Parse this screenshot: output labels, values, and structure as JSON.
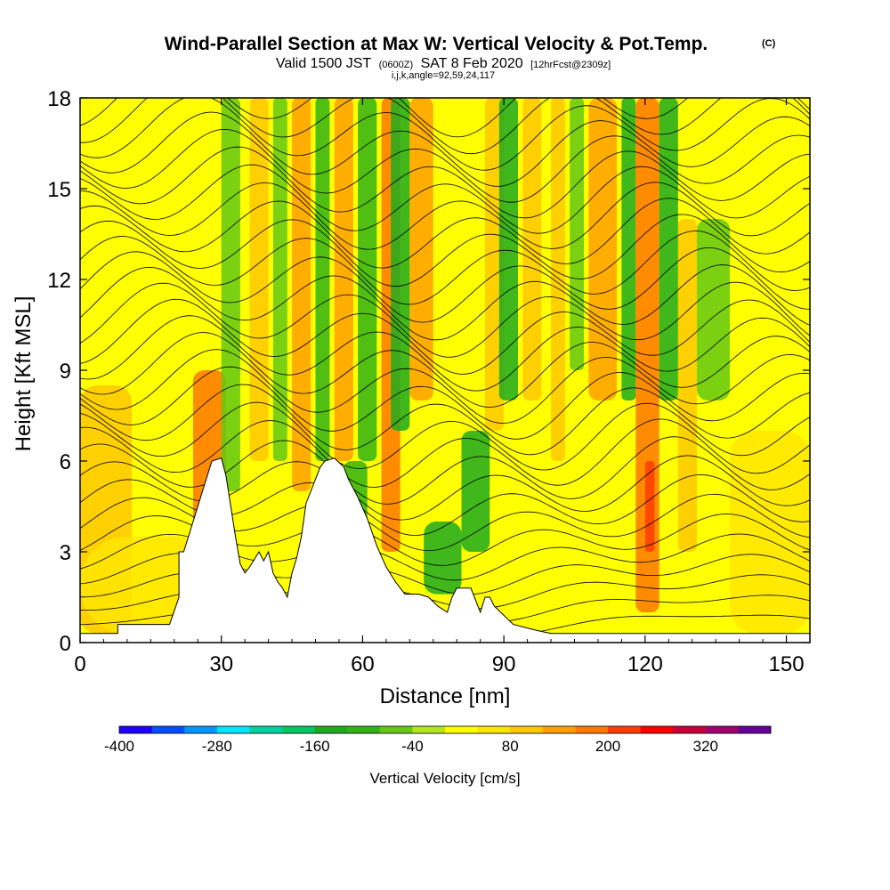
{
  "chart_data": {
    "type": "heatmap",
    "title": "Wind-Parallel Section at Max W: Vertical Velocity & Pot.Temp.",
    "title_unit": "(C)",
    "subtitle_pre": "Valid 1500 JST",
    "subtitle_utc": "(0600Z)",
    "subtitle_date": "SAT 8 Feb 2020",
    "subtitle_fcst": "[12hrFcst@2309z]",
    "grid_info": "i,j,k,angle=92,59,24,117",
    "xlabel": "Distance [nm]",
    "ylabel": "Height [Kft MSL]",
    "xlim": [
      0,
      155
    ],
    "ylim": [
      0,
      18
    ],
    "x_ticks": [
      0,
      30,
      60,
      90,
      120,
      150
    ],
    "y_ticks": [
      0,
      3,
      6,
      9,
      12,
      15,
      18
    ],
    "colorbar": {
      "title": "Vertical Velocity [cm/s]",
      "levels": [
        -400,
        -360,
        -320,
        -280,
        -240,
        -200,
        -160,
        -120,
        -80,
        -40,
        0,
        40,
        80,
        120,
        160,
        200,
        240,
        280,
        320,
        360
      ],
      "tick_labels": [
        "-400",
        "-280",
        "-160",
        "-40",
        "80",
        "200",
        "320"
      ],
      "colors": [
        "#1e00ff",
        "#0050ff",
        "#0096ff",
        "#00e6ff",
        "#00d2a0",
        "#00c864",
        "#1eaa1e",
        "#32b414",
        "#64c814",
        "#b4e61e",
        "#ffff00",
        "#ffe600",
        "#ffc800",
        "#ffa000",
        "#ff7800",
        "#ff3c00",
        "#ff0000",
        "#c8003c",
        "#a0006e",
        "#640096"
      ]
    },
    "terrain_kft": [
      [
        0,
        0.3
      ],
      [
        8,
        0.3
      ],
      [
        8,
        0.6
      ],
      [
        19,
        0.6
      ],
      [
        21,
        1.5
      ],
      [
        21,
        3.0
      ],
      [
        22,
        3.0
      ],
      [
        24,
        4.0
      ],
      [
        26,
        5.0
      ],
      [
        28,
        6.0
      ],
      [
        30,
        6.1
      ],
      [
        31,
        5.5
      ],
      [
        32,
        4.5
      ],
      [
        33,
        3.5
      ],
      [
        34,
        2.6
      ],
      [
        35,
        2.3
      ],
      [
        36,
        2.5
      ],
      [
        38,
        3.0
      ],
      [
        39,
        2.7
      ],
      [
        40,
        3.0
      ],
      [
        41,
        2.3
      ],
      [
        42,
        2.0
      ],
      [
        43,
        1.8
      ],
      [
        44,
        1.5
      ],
      [
        45,
        2.3
      ],
      [
        46,
        2.8
      ],
      [
        47,
        3.5
      ],
      [
        48,
        4.6
      ],
      [
        49,
        5.0
      ],
      [
        50,
        5.4
      ],
      [
        51,
        5.8
      ],
      [
        52,
        6.0
      ],
      [
        54,
        6.1
      ],
      [
        56,
        5.8
      ],
      [
        57,
        5.4
      ],
      [
        59,
        4.8
      ],
      [
        61,
        4.1
      ],
      [
        63,
        3.2
      ],
      [
        65,
        2.5
      ],
      [
        67,
        2.0
      ],
      [
        69,
        1.6
      ],
      [
        72,
        1.6
      ],
      [
        74,
        1.5
      ],
      [
        76,
        1.2
      ],
      [
        78,
        1.0
      ],
      [
        79,
        1.5
      ],
      [
        80,
        1.8
      ],
      [
        83,
        1.8
      ],
      [
        84,
        1.4
      ],
      [
        85,
        1.0
      ],
      [
        86,
        1.5
      ],
      [
        87,
        1.5
      ],
      [
        88,
        1.2
      ],
      [
        90,
        0.9
      ],
      [
        92,
        0.6
      ],
      [
        97,
        0.4
      ],
      [
        100,
        0.3
      ],
      [
        155,
        0.3
      ]
    ],
    "w_features": [
      {
        "x0": 0,
        "x1": 11,
        "z0": 0.3,
        "z1": 8.5,
        "w": 80
      },
      {
        "x0": 0,
        "x1": 30,
        "z0": 0.3,
        "z1": 3.5,
        "w": 60
      },
      {
        "x0": 24,
        "x1": 31,
        "z0": 3,
        "z1": 9,
        "w": 180
      },
      {
        "x0": 30,
        "x1": 34,
        "z0": 5,
        "z1": 18,
        "w": -60
      },
      {
        "x0": 36,
        "x1": 40,
        "z0": 6,
        "z1": 18,
        "w": 80
      },
      {
        "x0": 41,
        "x1": 44,
        "z0": 6,
        "z1": 18,
        "w": -80
      },
      {
        "x0": 45,
        "x1": 49,
        "z0": 5,
        "z1": 18,
        "w": 120
      },
      {
        "x0": 50,
        "x1": 53,
        "z0": 6,
        "z1": 18,
        "w": -100
      },
      {
        "x0": 54,
        "x1": 58,
        "z0": 6,
        "z1": 18,
        "w": 120
      },
      {
        "x0": 56,
        "x1": 61,
        "z0": 3,
        "z1": 6,
        "w": -120
      },
      {
        "x0": 59,
        "x1": 63,
        "z0": 6,
        "z1": 18,
        "w": -120
      },
      {
        "x0": 64,
        "x1": 68,
        "z0": 3,
        "z1": 18,
        "w": 160
      },
      {
        "x0": 66,
        "x1": 70,
        "z0": 7,
        "z1": 18,
        "w": -140
      },
      {
        "x0": 70,
        "x1": 75,
        "z0": 8,
        "z1": 18,
        "w": 120
      },
      {
        "x0": 73,
        "x1": 81,
        "z0": 1.6,
        "z1": 4,
        "w": -140
      },
      {
        "x0": 81,
        "x1": 87,
        "z0": 3,
        "z1": 7,
        "w": -160
      },
      {
        "x0": 86,
        "x1": 90,
        "z0": 7,
        "z1": 18,
        "w": 100
      },
      {
        "x0": 89,
        "x1": 93,
        "z0": 8,
        "z1": 18,
        "w": -140
      },
      {
        "x0": 94,
        "x1": 98,
        "z0": 8,
        "z1": 18,
        "w": 100
      },
      {
        "x0": 100,
        "x1": 103,
        "z0": 6,
        "z1": 18,
        "w": 100
      },
      {
        "x0": 104,
        "x1": 107,
        "z0": 9,
        "z1": 18,
        "w": -60
      },
      {
        "x0": 108,
        "x1": 114,
        "z0": 8,
        "z1": 18,
        "w": 140
      },
      {
        "x0": 115,
        "x1": 118,
        "z0": 8,
        "z1": 18,
        "w": -160
      },
      {
        "x0": 118,
        "x1": 123,
        "z0": 1,
        "z1": 18,
        "w": 170
      },
      {
        "x0": 120,
        "x1": 122,
        "z0": 3,
        "z1": 6,
        "w": 200
      },
      {
        "x0": 123,
        "x1": 127,
        "z0": 8,
        "z1": 18,
        "w": -160
      },
      {
        "x0": 127,
        "x1": 131,
        "z0": 3,
        "z1": 14,
        "w": 100
      },
      {
        "x0": 131,
        "x1": 138,
        "z0": 8,
        "z1": 14,
        "w": -80
      },
      {
        "x0": 138,
        "x1": 155,
        "z0": 0.3,
        "z1": 7,
        "w": 60
      }
    ]
  }
}
